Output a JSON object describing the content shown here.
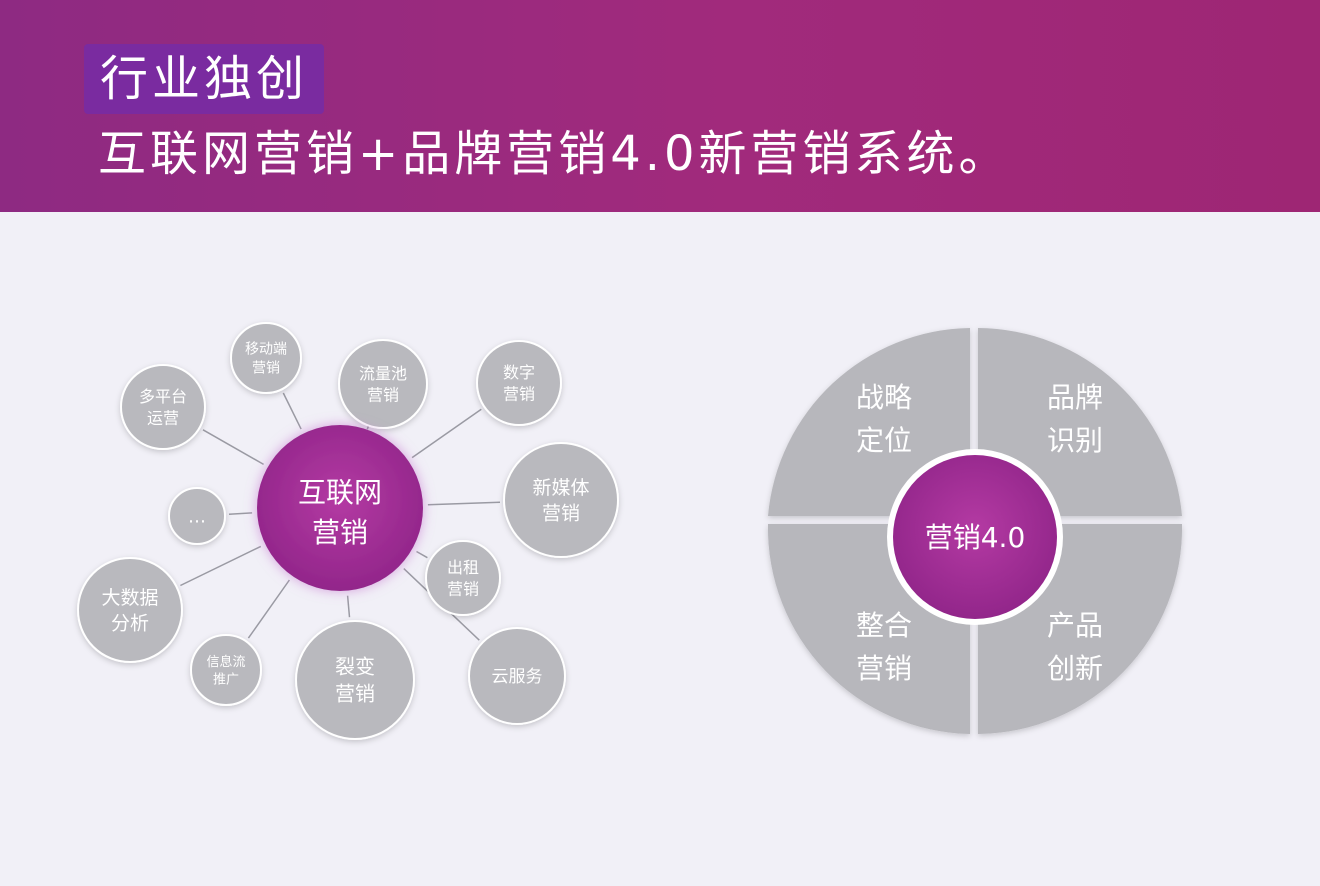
{
  "header": {
    "tag": "行业独创",
    "headline": "互联网营销+品牌营销4.0新营销系统。"
  },
  "left_diagram": {
    "center": [
      "互联网",
      "营销"
    ],
    "nodes": [
      {
        "lines": [
          "移动端",
          "营销"
        ]
      },
      {
        "lines": [
          "流量池",
          "营销"
        ]
      },
      {
        "lines": [
          "数字",
          "营销"
        ]
      },
      {
        "lines": [
          "多平台",
          "运营"
        ]
      },
      {
        "lines": [
          "新媒体",
          "营销"
        ]
      },
      {
        "lines": [
          "…"
        ]
      },
      {
        "lines": [
          "出租",
          "营销"
        ]
      },
      {
        "lines": [
          "大数据",
          "分析"
        ]
      },
      {
        "lines": [
          "信息流",
          "推广"
        ]
      },
      {
        "lines": [
          "裂变",
          "营销"
        ]
      },
      {
        "lines": [
          "云服务"
        ]
      }
    ]
  },
  "right_diagram": {
    "center": "营销4.0",
    "quadrants": [
      {
        "position": "top-left",
        "lines": [
          "战略",
          "定位"
        ]
      },
      {
        "position": "top-right",
        "lines": [
          "品牌",
          "识别"
        ]
      },
      {
        "position": "bottom-left",
        "lines": [
          "整合",
          "营销"
        ]
      },
      {
        "position": "bottom-right",
        "lines": [
          "产品",
          "创新"
        ]
      }
    ]
  },
  "colors": {
    "header": "#9c2a7e",
    "tag_bg": "#7a2ba0",
    "center_fill": "#a22b92",
    "node_fill": "#b9b9be",
    "node_text": "#ffffff",
    "quadrant_fill": "#b7b7bc",
    "background": "#f1f0f7"
  }
}
